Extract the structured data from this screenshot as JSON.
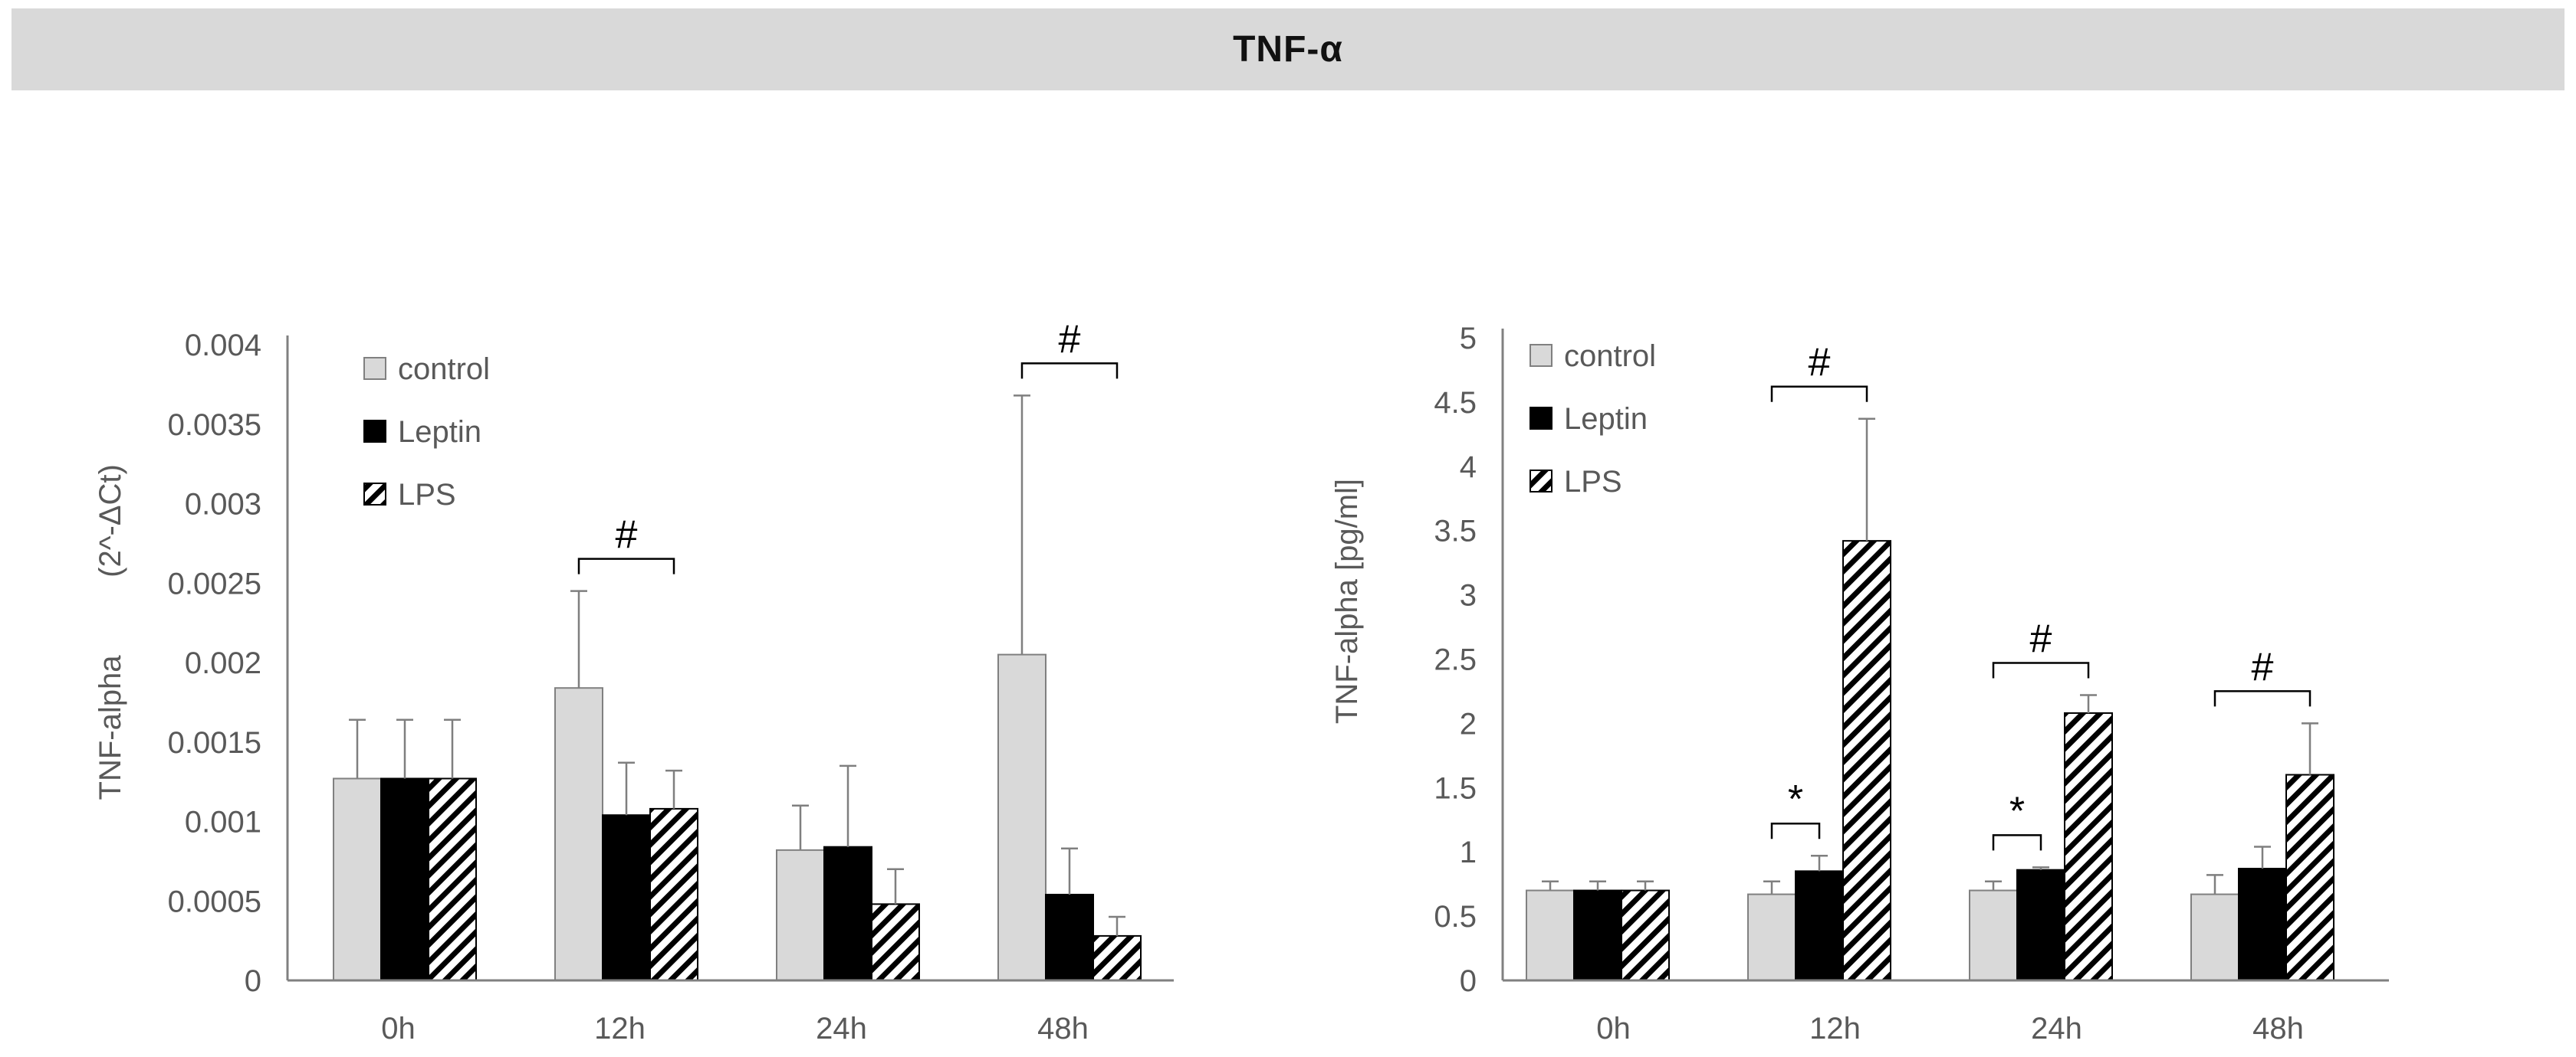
{
  "figure_title": "TNF-α",
  "colors": {
    "control": "#d9d9d9",
    "leptin": "#000000",
    "lps_fill": "#ffffff",
    "lps_hatch": "#000000",
    "axis": "#808080",
    "text": "#595959",
    "title_bg": "#d9d9d9"
  },
  "chart_data": [
    {
      "type": "bar",
      "title": "",
      "xlabel": "",
      "ylabel": "TNF-alpha",
      "ylabel_unit": "(2^-ΔCt)",
      "categories": [
        "0h",
        "12h",
        "24h",
        "48h"
      ],
      "ylim": [
        0,
        0.004
      ],
      "yticks": [
        "0",
        "0.0005",
        "0.001",
        "0.0015",
        "0.002",
        "0.0025",
        "0.003",
        "0.0035",
        "0.004"
      ],
      "series": [
        {
          "name": "control",
          "values": [
            0.00127,
            0.00184,
            0.00082,
            0.00205
          ],
          "errors": [
            0.00037,
            0.00061,
            0.00028,
            0.00163
          ]
        },
        {
          "name": "Leptin",
          "values": [
            0.00127,
            0.00104,
            0.00084,
            0.00054
          ],
          "errors": [
            0.00037,
            0.00033,
            0.00051,
            0.00029
          ]
        },
        {
          "name": "LPS",
          "values": [
            0.00127,
            0.00108,
            0.00048,
            0.00028
          ],
          "errors": [
            0.00037,
            0.00024,
            0.00022,
            0.00012
          ]
        }
      ],
      "legend": [
        "control",
        "Leptin",
        "LPS"
      ],
      "legend_position": "top-left",
      "annotations": [
        {
          "category": "12h",
          "from": "control",
          "to": "LPS",
          "symbol": "#"
        },
        {
          "category": "48h",
          "from": "control",
          "to": "LPS",
          "symbol": "#"
        }
      ]
    },
    {
      "type": "bar",
      "title": "",
      "xlabel": "",
      "ylabel": "TNF-alpha [pg/ml]",
      "categories": [
        "0h",
        "12h",
        "24h",
        "48h"
      ],
      "ylim": [
        0,
        5
      ],
      "yticks": [
        "0",
        "0.5",
        "1",
        "1.5",
        "2",
        "2.5",
        "3",
        "3.5",
        "4",
        "4.5",
        "5"
      ],
      "series": [
        {
          "name": "control",
          "values": [
            0.7,
            0.67,
            0.7,
            0.67
          ],
          "errors": [
            0.07,
            0.1,
            0.07,
            0.15
          ]
        },
        {
          "name": "Leptin",
          "values": [
            0.7,
            0.85,
            0.86,
            0.87
          ],
          "errors": [
            0.07,
            0.12,
            0.02,
            0.17
          ]
        },
        {
          "name": "LPS",
          "values": [
            0.7,
            3.42,
            2.08,
            1.6
          ],
          "errors": [
            0.07,
            0.95,
            0.14,
            0.4
          ]
        }
      ],
      "legend": [
        "control",
        "Leptin",
        "LPS"
      ],
      "legend_position": "top-left",
      "annotations": [
        {
          "category": "12h",
          "from": "control",
          "to": "Leptin",
          "symbol": "*"
        },
        {
          "category": "12h",
          "from": "control",
          "to": "LPS",
          "symbol": "#"
        },
        {
          "category": "24h",
          "from": "control",
          "to": "Leptin",
          "symbol": "*"
        },
        {
          "category": "24h",
          "from": "control",
          "to": "LPS",
          "symbol": "#"
        },
        {
          "category": "48h",
          "from": "control",
          "to": "LPS",
          "symbol": "#"
        }
      ]
    }
  ]
}
